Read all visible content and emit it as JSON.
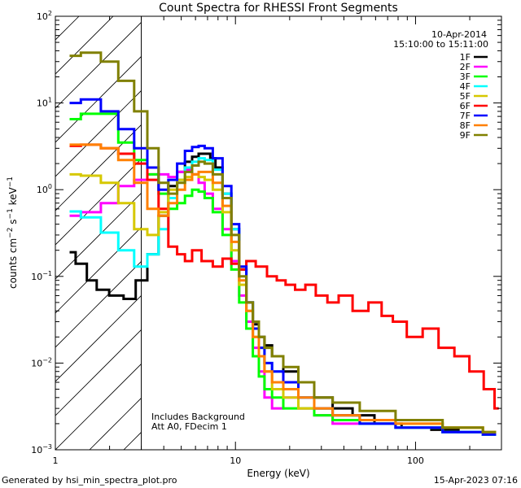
{
  "chart_data": {
    "type": "line",
    "title": "Count Spectra for RHESSI Front Segments",
    "xlabel": "Energy (keV)",
    "ylabel": "counts cm-2 s-1 keV-1",
    "ylabel_parts": {
      "base": "counts cm",
      "exp1": "−2",
      "mid": " s",
      "exp2": "−1",
      "mid2": " keV",
      "exp3": "−1"
    },
    "xscale": "log",
    "yscale": "log",
    "xlim": [
      1,
      300
    ],
    "ylim": [
      0.001,
      100
    ],
    "x_ticks": [
      {
        "value": 1,
        "label": "1"
      },
      {
        "value": 10,
        "label": "10"
      },
      {
        "value": 100,
        "label": "100"
      }
    ],
    "y_ticks": [
      {
        "value": 0.001,
        "base": "10",
        "exp": "−3"
      },
      {
        "value": 0.01,
        "base": "10",
        "exp": "−2"
      },
      {
        "value": 0.1,
        "base": "10",
        "exp": "−1"
      },
      {
        "value": 1,
        "base": "10",
        "exp": "0"
      },
      {
        "value": 10,
        "base": "10",
        "exp": "1"
      },
      {
        "value": 100,
        "base": "10",
        "exp": "2"
      }
    ],
    "date": "10-Apr-2014",
    "time_range": "15:10:00 to 15:11:00",
    "annotation_lines": [
      "Includes Background",
      "Att A0, FDecim 1"
    ],
    "hatched_region_upper_energy": 3,
    "legend_position": "top-right",
    "series": [
      {
        "name": "1F",
        "color": "#000000",
        "x": [
          1.2,
          1.4,
          1.6,
          1.8,
          2.2,
          2.6,
          3.0,
          3.5,
          4.0,
          4.5,
          5.0,
          5.5,
          6.0,
          6.5,
          7.0,
          7.5,
          8.0,
          9.0,
          10.0,
          11.0,
          12.0,
          13.0,
          14.0,
          15.0,
          17.0,
          20.0,
          25.0,
          30.0,
          40.0,
          50.0,
          70.0,
          100.0,
          150.0,
          200.0,
          280.0
        ],
        "y": [
          0.19,
          0.14,
          0.09,
          0.07,
          0.06,
          0.055,
          0.09,
          0.18,
          0.5,
          1.1,
          1.6,
          2.1,
          2.4,
          2.6,
          2.6,
          2.3,
          1.8,
          0.9,
          0.35,
          0.12,
          0.05,
          0.028,
          0.02,
          0.016,
          0.012,
          0.008,
          0.006,
          0.004,
          0.003,
          0.0025,
          0.002,
          0.0018,
          0.0017,
          0.0016,
          0.0015
        ]
      },
      {
        "name": "2F",
        "color": "#ff00ff",
        "x": [
          1.2,
          1.6,
          2.0,
          2.5,
          3.0,
          3.5,
          4.0,
          4.5,
          5.0,
          5.5,
          6.0,
          6.5,
          7.0,
          8.0,
          9.0,
          10.0,
          11.0,
          12.0,
          13.0,
          14.0,
          15.0,
          17.0,
          20.0,
          25.0,
          30.0,
          40.0,
          60.0,
          100.0,
          200.0,
          280.0
        ],
        "y": [
          0.5,
          0.55,
          0.7,
          1.1,
          1.3,
          1.5,
          1.5,
          1.4,
          1.6,
          1.7,
          1.5,
          1.2,
          0.9,
          0.6,
          0.35,
          0.15,
          0.06,
          0.03,
          0.015,
          0.008,
          0.004,
          0.003,
          0.004,
          0.003,
          0.0025,
          0.002,
          0.002,
          0.0018,
          0.0016,
          0.0015
        ]
      },
      {
        "name": "3F",
        "color": "#00ff00",
        "x": [
          1.2,
          1.6,
          2.0,
          2.5,
          3.0,
          3.5,
          4.0,
          4.5,
          5.0,
          5.5,
          6.0,
          6.5,
          7.0,
          8.0,
          9.0,
          10.0,
          11.0,
          12.0,
          13.0,
          14.0,
          15.0,
          17.0,
          20.0,
          25.0,
          30.0,
          40.0,
          60.0,
          100.0,
          200.0,
          280.0
        ],
        "y": [
          6.5,
          7.5,
          7.5,
          3.5,
          2.2,
          1.5,
          0.9,
          0.6,
          0.7,
          0.85,
          1.0,
          0.95,
          0.8,
          0.55,
          0.3,
          0.12,
          0.05,
          0.025,
          0.012,
          0.007,
          0.005,
          0.004,
          0.003,
          0.003,
          0.0025,
          0.0022,
          0.002,
          0.0018,
          0.0016,
          0.0015
        ]
      },
      {
        "name": "4F",
        "color": "#00ffff",
        "x": [
          1.2,
          1.6,
          2.0,
          2.5,
          3.0,
          3.5,
          4.0,
          4.5,
          5.0,
          5.5,
          6.0,
          6.5,
          7.0,
          8.0,
          9.0,
          10.0,
          11.0,
          12.0,
          13.0,
          14.0,
          15.0,
          17.0,
          20.0,
          25.0,
          30.0,
          40.0,
          60.0,
          100.0,
          200.0,
          280.0
        ],
        "y": [
          0.56,
          0.48,
          0.32,
          0.2,
          0.13,
          0.18,
          0.35,
          0.8,
          1.3,
          1.8,
          2.1,
          2.3,
          2.2,
          1.7,
          0.9,
          0.35,
          0.12,
          0.05,
          0.025,
          0.015,
          0.01,
          0.008,
          0.006,
          0.004,
          0.003,
          0.0025,
          0.002,
          0.0018,
          0.0016,
          0.0015
        ]
      },
      {
        "name": "5F",
        "color": "#d6c800",
        "x": [
          1.2,
          1.6,
          2.0,
          2.5,
          3.0,
          3.5,
          4.0,
          4.5,
          5.0,
          5.5,
          6.0,
          6.5,
          7.0,
          8.0,
          9.0,
          10.0,
          11.0,
          12.0,
          13.0,
          14.0,
          15.0,
          17.0,
          20.0,
          25.0,
          30.0,
          40.0,
          60.0,
          100.0,
          200.0,
          280.0
        ],
        "y": [
          1.5,
          1.45,
          1.2,
          0.7,
          0.35,
          0.3,
          0.55,
          1.0,
          1.3,
          1.4,
          1.5,
          1.4,
          1.3,
          1.0,
          0.55,
          0.2,
          0.08,
          0.04,
          0.02,
          0.012,
          0.008,
          0.005,
          0.004,
          0.003,
          0.003,
          0.0025,
          0.0022,
          0.002,
          0.0018,
          0.0016
        ]
      },
      {
        "name": "6F",
        "color": "#ff0000",
        "x": [
          1.2,
          1.6,
          2.0,
          2.5,
          3.0,
          3.5,
          4.0,
          4.5,
          5.0,
          5.5,
          6.0,
          7.0,
          8.0,
          9.0,
          10.0,
          11.0,
          12.0,
          14.0,
          16.0,
          18.0,
          20.0,
          23.0,
          26.0,
          30.0,
          35.0,
          40.0,
          50.0,
          60.0,
          70.0,
          80.0,
          100.0,
          120.0,
          150.0,
          180.0,
          220.0,
          260.0,
          290.0
        ],
        "y": [
          3.2,
          3.3,
          3.0,
          2.6,
          2.0,
          1.3,
          0.6,
          0.22,
          0.18,
          0.15,
          0.2,
          0.15,
          0.13,
          0.16,
          0.14,
          0.12,
          0.15,
          0.13,
          0.1,
          0.09,
          0.08,
          0.07,
          0.08,
          0.06,
          0.05,
          0.06,
          0.04,
          0.05,
          0.035,
          0.03,
          0.02,
          0.025,
          0.015,
          0.012,
          0.008,
          0.005,
          0.003
        ]
      },
      {
        "name": "7F",
        "color": "#0000ff",
        "x": [
          1.2,
          1.6,
          2.0,
          2.5,
          3.0,
          3.5,
          4.0,
          4.5,
          5.0,
          5.5,
          6.0,
          6.5,
          7.0,
          8.0,
          9.0,
          10.0,
          11.0,
          12.0,
          13.0,
          14.0,
          15.0,
          17.0,
          20.0,
          25.0,
          30.0,
          40.0,
          60.0,
          100.0,
          200.0,
          280.0
        ],
        "y": [
          10.0,
          11.0,
          8.0,
          5.0,
          3.0,
          1.8,
          1.0,
          1.3,
          2.0,
          2.8,
          3.1,
          3.2,
          3.0,
          2.3,
          1.1,
          0.4,
          0.13,
          0.05,
          0.025,
          0.015,
          0.01,
          0.008,
          0.006,
          0.004,
          0.003,
          0.0025,
          0.002,
          0.0018,
          0.0016,
          0.0015
        ]
      },
      {
        "name": "8F",
        "color": "#ff8000",
        "x": [
          1.2,
          1.6,
          2.0,
          2.5,
          3.0,
          3.5,
          4.0,
          4.5,
          5.0,
          5.5,
          6.0,
          6.5,
          7.0,
          8.0,
          9.0,
          10.0,
          11.0,
          12.0,
          13.0,
          14.0,
          15.0,
          17.0,
          20.0,
          25.0,
          30.0,
          40.0,
          60.0,
          100.0,
          200.0,
          280.0
        ],
        "y": [
          3.3,
          3.3,
          3.0,
          2.2,
          1.2,
          0.6,
          0.5,
          0.7,
          1.0,
          1.3,
          1.5,
          1.6,
          1.6,
          1.2,
          0.65,
          0.25,
          0.09,
          0.04,
          0.02,
          0.012,
          0.008,
          0.006,
          0.005,
          0.004,
          0.003,
          0.0025,
          0.0022,
          0.002,
          0.0018,
          0.0016
        ]
      },
      {
        "name": "9F",
        "color": "#808000",
        "x": [
          1.2,
          1.6,
          2.0,
          2.5,
          3.0,
          3.5,
          4.0,
          4.5,
          5.0,
          5.5,
          6.0,
          6.5,
          7.0,
          8.0,
          9.0,
          10.0,
          11.0,
          12.0,
          13.0,
          14.0,
          15.0,
          17.0,
          20.0,
          25.0,
          30.0,
          40.0,
          60.0,
          100.0,
          200.0,
          280.0
        ],
        "y": [
          35.0,
          38.0,
          30.0,
          18.0,
          8.0,
          3.0,
          1.2,
          0.9,
          1.2,
          1.6,
          1.9,
          2.1,
          2.0,
          1.5,
          0.8,
          0.3,
          0.1,
          0.05,
          0.03,
          0.02,
          0.015,
          0.012,
          0.009,
          0.006,
          0.004,
          0.0035,
          0.0028,
          0.0022,
          0.0018,
          0.0016
        ]
      }
    ]
  },
  "footer": {
    "generated_by": "Generated by hsi_min_spectra_plot.pro",
    "timestamp": "15-Apr-2023 07:16"
  }
}
